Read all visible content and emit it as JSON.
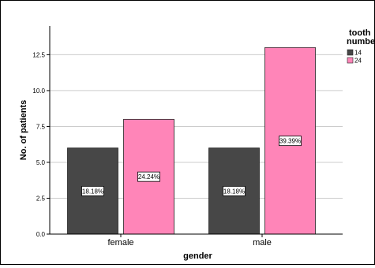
{
  "chart_data": {
    "type": "bar",
    "categories": [
      "female",
      "male"
    ],
    "series": [
      {
        "name": "14",
        "color": "#474747",
        "values": [
          6,
          6
        ],
        "labels": [
          "18.18%",
          "18.18%"
        ]
      },
      {
        "name": "24",
        "color": "#ff85b8",
        "values": [
          8,
          13
        ],
        "labels": [
          "24.24%",
          "39.39%"
        ]
      }
    ],
    "xlabel": "gender",
    "ylabel": "No. of patients",
    "ylim": [
      0,
      14.5
    ],
    "yticks": [
      "0.0",
      "2.5",
      "5.0",
      "7.5",
      "10.0",
      "12.5"
    ],
    "ytick_values": [
      0,
      2.5,
      5,
      7.5,
      10,
      12.5
    ],
    "grid": true,
    "legend": {
      "title_lines": [
        "tooth",
        "number"
      ],
      "placement": "right"
    },
    "gridline_color": "#cccccc",
    "axis_color": "#000000"
  }
}
